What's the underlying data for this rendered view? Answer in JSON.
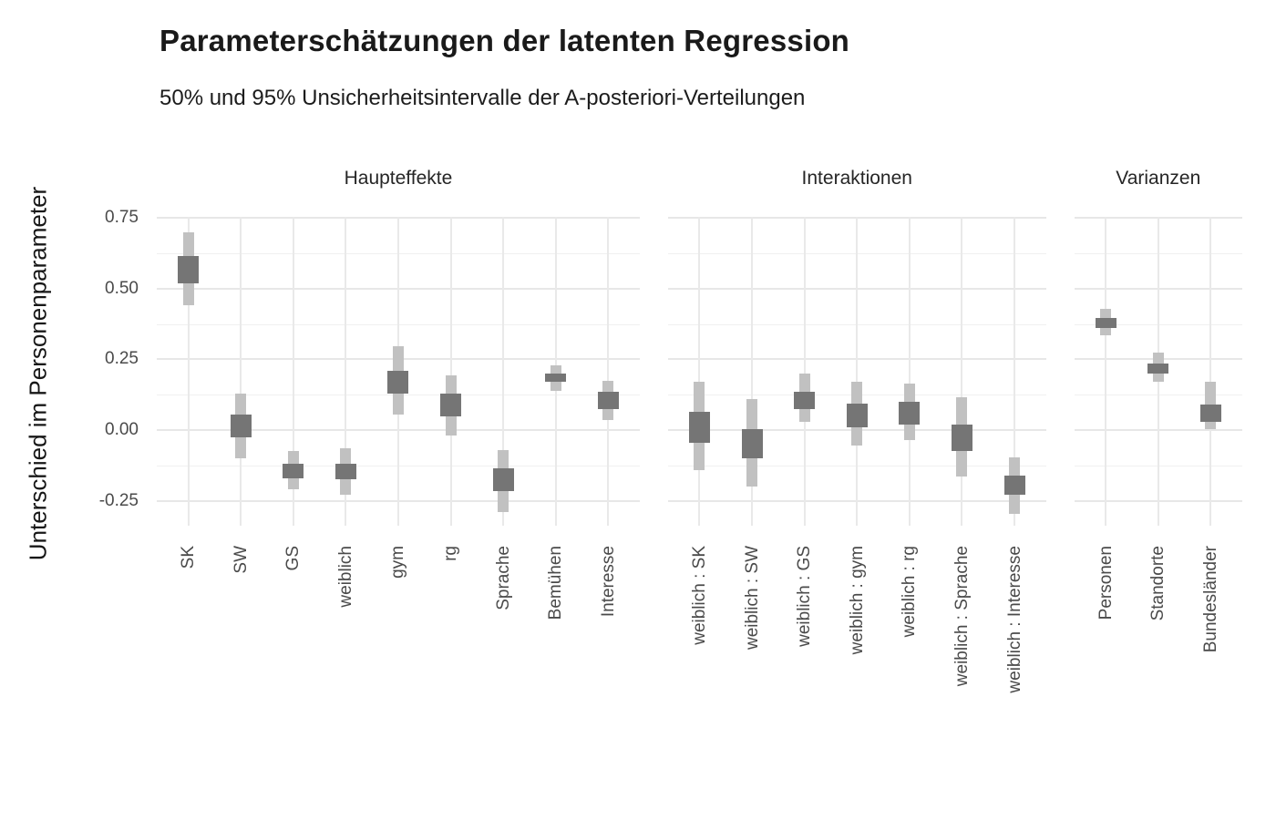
{
  "page": {
    "title": "Parameterschätzungen der latenten Regression",
    "subtitle": "50% und 95% Unsicherheitsintervalle der A-posteriori-Verteilungen",
    "y_axis_label": "Unterschied im Personenparameter"
  },
  "colors": {
    "background": "#ffffff",
    "interval_95": "#c1c1c1",
    "interval_50": "#757575",
    "grid_major": "#e7e7e7",
    "grid_minor": "#f0f0f0",
    "title_text": "#1a1a1a",
    "axis_text": "#4a4a4a",
    "strip_text": "#262626"
  },
  "chart_data": {
    "type": "bar",
    "subtype": "nested uncertainty intervals (thin = 95% CI, thick = 50% CI)",
    "title": "Parameterschätzungen der latenten Regression",
    "subtitle": "50% und 95% Unsicherheitsintervalle der A-posteriori-Verteilungen",
    "xlabel": "",
    "ylabel": "Unterschied im Personenparameter",
    "ylim": [
      -0.338,
      0.754
    ],
    "grid": true,
    "legend_position": "none",
    "y_axis": {
      "major_ticks": [
        0.75,
        0.5,
        0.25,
        0.0,
        -0.25
      ],
      "tick_labels": [
        "0.75",
        "0.50",
        "0.25",
        "0.00",
        "-0.25"
      ],
      "minor_ticks": [
        0.625,
        0.375,
        0.125,
        -0.125
      ]
    },
    "panels": [
      {
        "facet": "Haupteffekte",
        "items": [
          {
            "label": "SK",
            "ci95": [
              0.44,
              0.7
            ],
            "ci50": [
              0.52,
              0.615
            ]
          },
          {
            "label": "SW",
            "ci95": [
              -0.1,
              0.13
            ],
            "ci50": [
              -0.025,
              0.055
            ]
          },
          {
            "label": "GS",
            "ci95": [
              -0.21,
              -0.075
            ],
            "ci50": [
              -0.17,
              -0.12
            ]
          },
          {
            "label": "weiblich",
            "ci95": [
              -0.23,
              -0.065
            ],
            "ci50": [
              -0.175,
              -0.12
            ]
          },
          {
            "label": "gym",
            "ci95": [
              0.055,
              0.295
            ],
            "ci50": [
              0.13,
              0.21
            ]
          },
          {
            "label": "rg",
            "ci95": [
              -0.02,
              0.195
            ],
            "ci50": [
              0.05,
              0.13
            ]
          },
          {
            "label": "Sprache",
            "ci95": [
              -0.29,
              -0.07
            ],
            "ci50": [
              -0.215,
              -0.135
            ]
          },
          {
            "label": "Bemühen",
            "ci95": [
              0.14,
              0.23
            ],
            "ci50": [
              0.17,
              0.2
            ]
          },
          {
            "label": "Interesse",
            "ci95": [
              0.035,
              0.175
            ],
            "ci50": [
              0.075,
              0.135
            ]
          }
        ]
      },
      {
        "facet": "Interaktionen",
        "items": [
          {
            "label": "weiblich : SK",
            "ci95": [
              -0.14,
              0.17
            ],
            "ci50": [
              -0.045,
              0.065
            ]
          },
          {
            "label": "weiblich : SW",
            "ci95": [
              -0.2,
              0.11
            ],
            "ci50": [
              -0.1,
              0.005
            ]
          },
          {
            "label": "weiblich : GS",
            "ci95": [
              0.03,
              0.2
            ],
            "ci50": [
              0.075,
              0.135
            ]
          },
          {
            "label": "weiblich : gym",
            "ci95": [
              -0.055,
              0.17
            ],
            "ci50": [
              0.01,
              0.095
            ]
          },
          {
            "label": "weiblich : rg",
            "ci95": [
              -0.035,
              0.165
            ],
            "ci50": [
              0.02,
              0.1
            ]
          },
          {
            "label": "weiblich : Sprache",
            "ci95": [
              -0.165,
              0.115
            ],
            "ci50": [
              -0.075,
              0.02
            ]
          },
          {
            "label": "weiblich : Interesse",
            "ci95": [
              -0.295,
              -0.095
            ],
            "ci50": [
              -0.23,
              -0.16
            ]
          }
        ]
      },
      {
        "facet": "Varianzen",
        "items": [
          {
            "label": "Personen",
            "ci95": [
              0.335,
              0.43
            ],
            "ci50": [
              0.36,
              0.395
            ]
          },
          {
            "label": "Standorte",
            "ci95": [
              0.17,
              0.275
            ],
            "ci50": [
              0.2,
              0.235
            ]
          },
          {
            "label": "Bundesländer",
            "ci95": [
              0.005,
              0.17
            ],
            "ci50": [
              0.03,
              0.09
            ]
          }
        ]
      }
    ]
  }
}
